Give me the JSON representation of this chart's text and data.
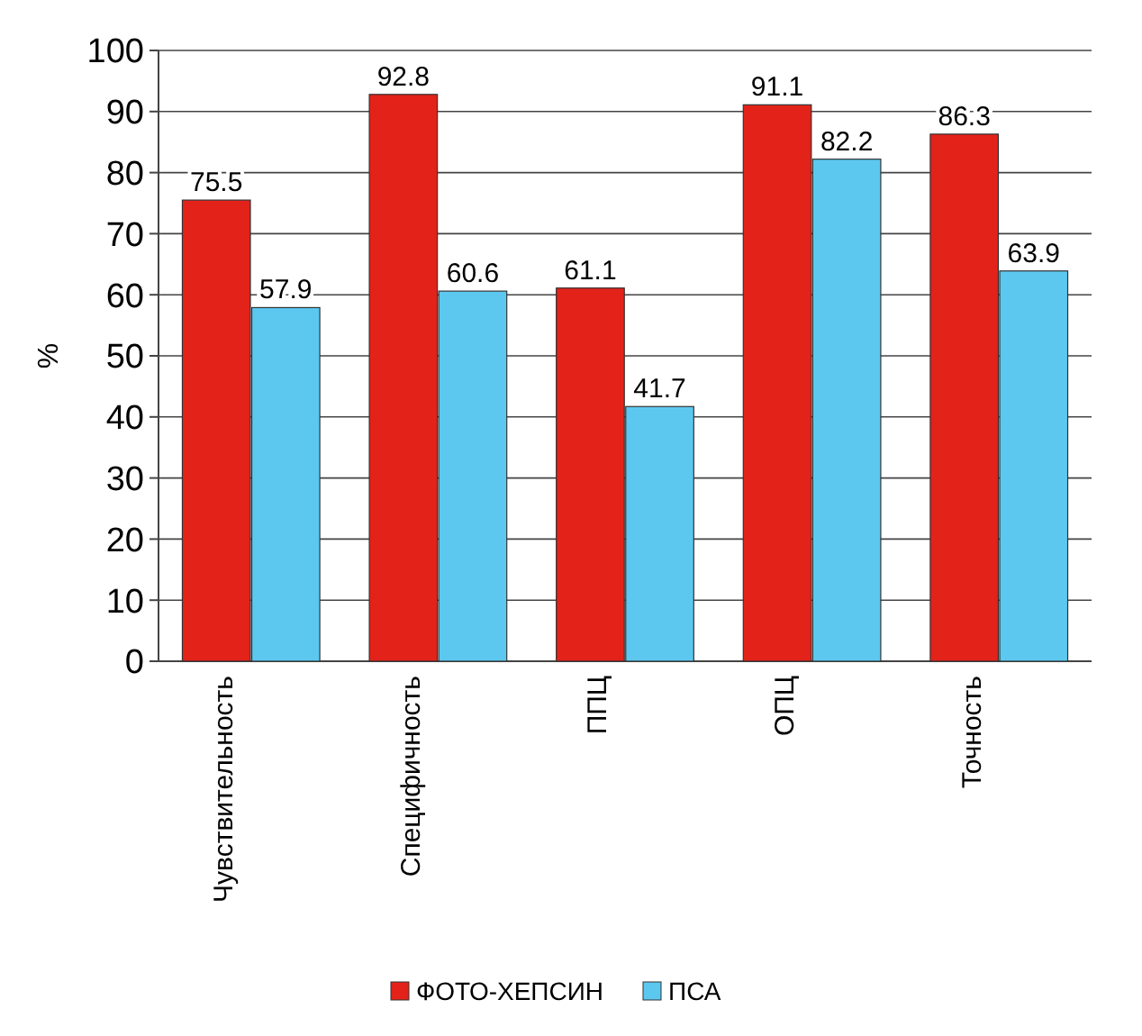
{
  "chart_data": {
    "type": "bar",
    "ylabel": "%",
    "categories": [
      "Чувствительность",
      "Специфичность",
      "ППЦ",
      "ОПЦ",
      "Точность"
    ],
    "series": [
      {
        "name": "ФОТО-ХЕПСИН",
        "color": "#e32219",
        "values": [
          75.5,
          92.8,
          61.1,
          91.1,
          86.3
        ]
      },
      {
        "name": "ПСА",
        "color": "#5cc8f0",
        "values": [
          57.9,
          60.6,
          41.7,
          82.2,
          63.9
        ]
      }
    ],
    "ylim": [
      0,
      100
    ],
    "yticks": [
      0,
      10,
      20,
      30,
      40,
      50,
      60,
      70,
      80,
      90,
      100
    ],
    "grid": "y",
    "legend": "bottom",
    "data_labels": true
  }
}
